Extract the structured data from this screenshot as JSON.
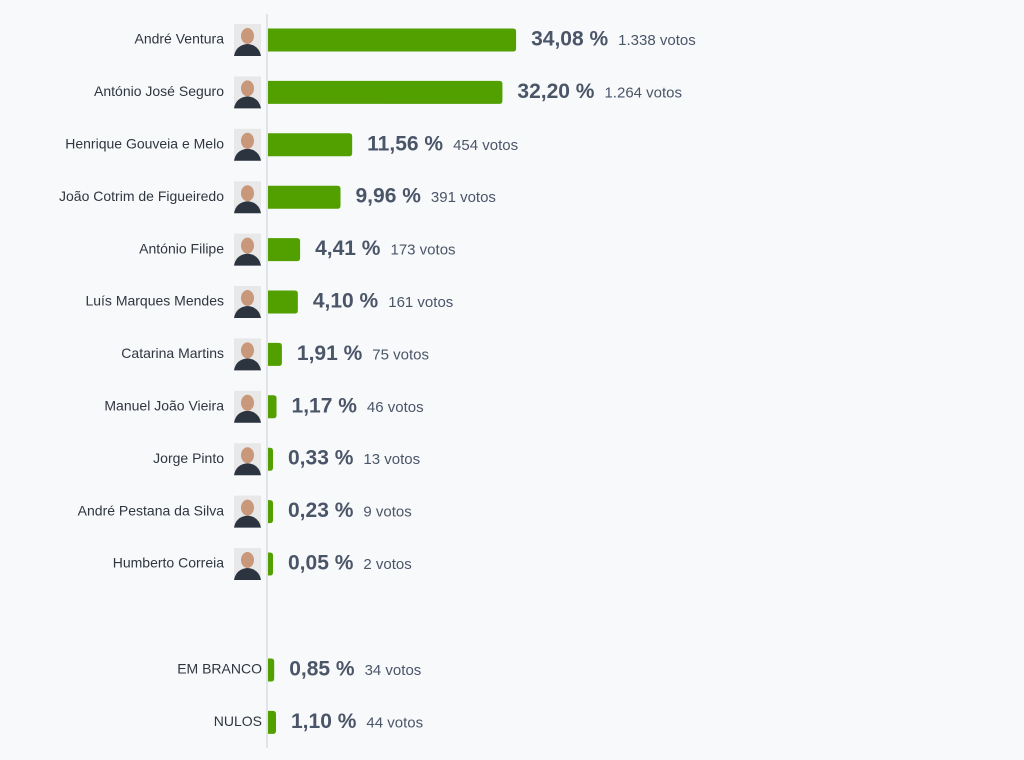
{
  "chart_data": [
    {
      "type": "bar",
      "color": "#51a000",
      "categories": [
        "André Ventura",
        "António José Seguro",
        "Henrique Gouveia e Melo",
        "João Cotrim de Figueiredo",
        "António Filipe",
        "Luís Marques Mendes",
        "Catarina Martins",
        "Manuel João Vieira",
        "Jorge Pinto",
        "André Pestana da Silva",
        "Humberto Correia"
      ],
      "values": [
        34.08,
        32.2,
        11.56,
        9.96,
        4.41,
        4.1,
        1.91,
        1.17,
        0.33,
        0.23,
        0.05
      ],
      "value_labels": [
        "34,08 %",
        "32,20 %",
        "11,56 %",
        "9,96 %",
        "4,41 %",
        "4,10 %",
        "1,91 %",
        "1,17 %",
        "0,33 %",
        "0,23 %",
        "0,05 %"
      ],
      "vote_labels": [
        "1.338 votos",
        "1.264 votos",
        "454 votos",
        "391 votos",
        "173 votos",
        "161 votos",
        "75 votos",
        "46 votos",
        "13 votos",
        "9 votos",
        "2 votos"
      ]
    },
    {
      "type": "bar",
      "color": "#51a000",
      "categories": [
        "EM BRANCO",
        "NULOS"
      ],
      "values": [
        0.85,
        1.1
      ],
      "value_labels": [
        "0,85 %",
        "1,10 %"
      ],
      "vote_labels": [
        "34 votos",
        "44 votos"
      ]
    }
  ]
}
